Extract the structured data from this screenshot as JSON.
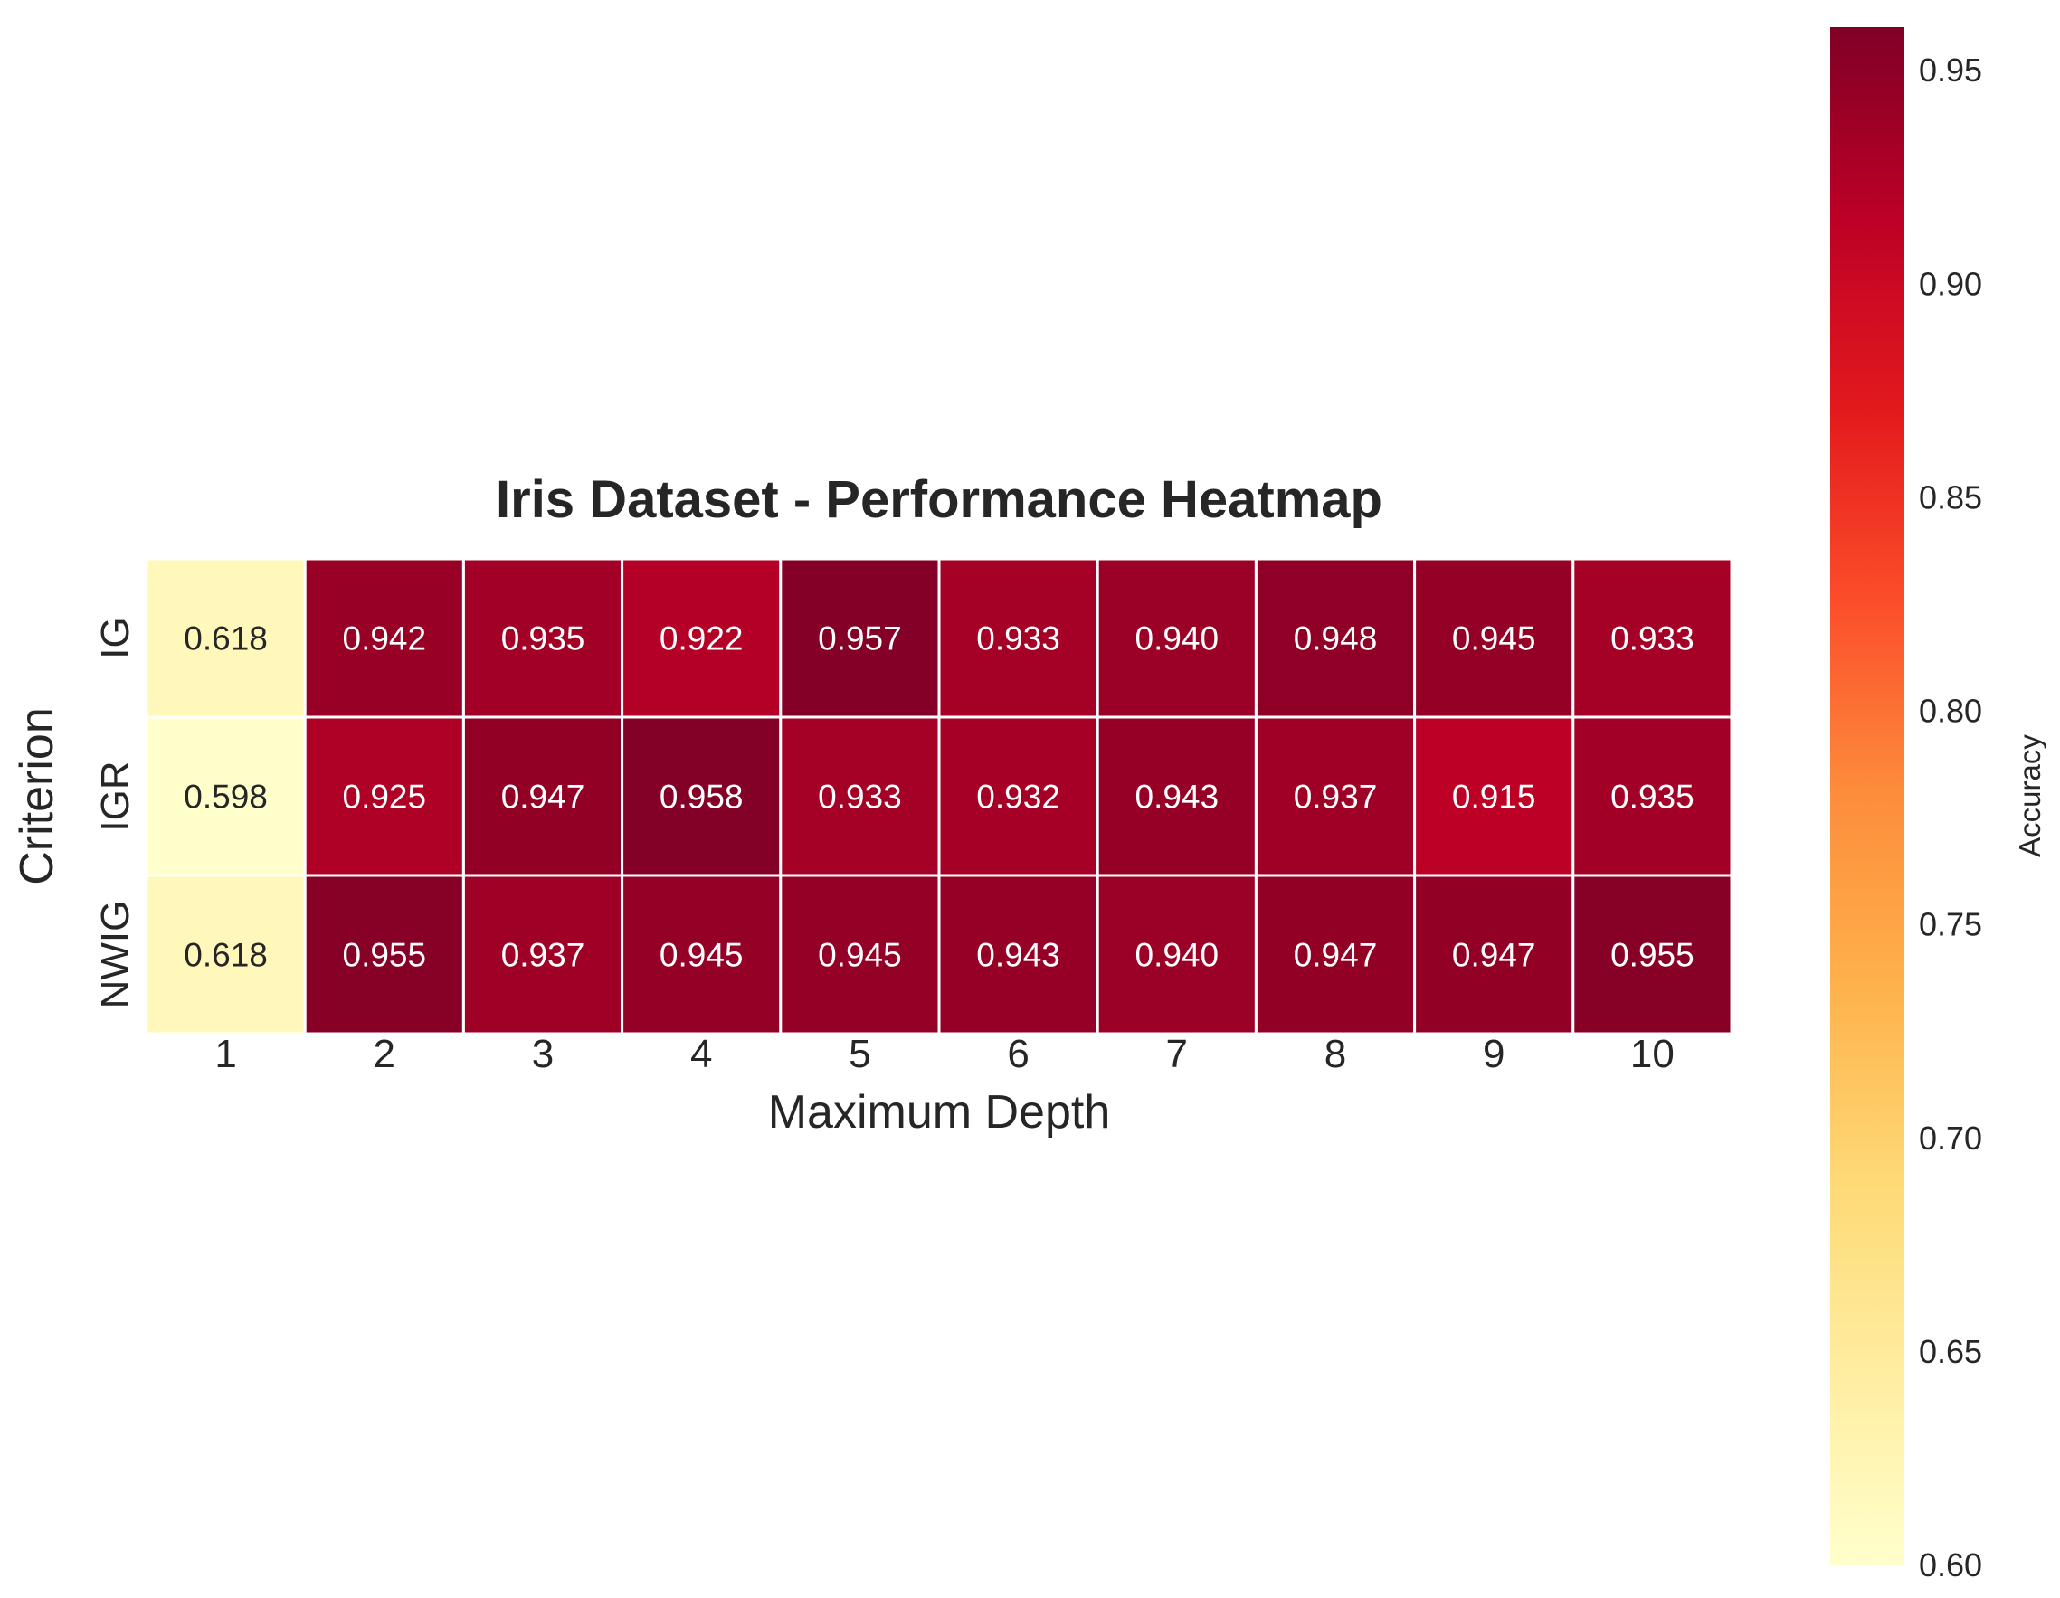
{
  "chart_data": {
    "type": "heatmap",
    "title": "Iris Dataset - Performance Heatmap",
    "xlabel": "Maximum Depth",
    "ylabel": "Criterion",
    "x_categories": [
      "1",
      "2",
      "3",
      "4",
      "5",
      "6",
      "7",
      "8",
      "9",
      "10"
    ],
    "y_categories": [
      "IG",
      "IGR",
      "NWIG"
    ],
    "values": [
      [
        0.618,
        0.942,
        0.935,
        0.922,
        0.957,
        0.933,
        0.94,
        0.948,
        0.945,
        0.933
      ],
      [
        0.598,
        0.925,
        0.947,
        0.958,
        0.933,
        0.932,
        0.943,
        0.937,
        0.915,
        0.935
      ],
      [
        0.618,
        0.955,
        0.937,
        0.945,
        0.945,
        0.943,
        0.94,
        0.947,
        0.947,
        0.955
      ]
    ],
    "cell_labels": [
      [
        "0.618",
        "0.942",
        "0.935",
        "0.922",
        "0.957",
        "0.933",
        "0.940",
        "0.948",
        "0.945",
        "0.933"
      ],
      [
        "0.598",
        "0.925",
        "0.947",
        "0.958",
        "0.933",
        "0.932",
        "0.943",
        "0.937",
        "0.915",
        "0.935"
      ],
      [
        "0.618",
        "0.955",
        "0.937",
        "0.945",
        "0.945",
        "0.943",
        "0.940",
        "0.947",
        "0.947",
        "0.955"
      ]
    ],
    "colorbar": {
      "label": "Accuracy",
      "range": [
        0.6,
        0.96
      ],
      "ticks": [
        0.6,
        0.65,
        0.7,
        0.75,
        0.8,
        0.85,
        0.9,
        0.95
      ],
      "tick_labels": [
        "0.60",
        "0.65",
        "0.70",
        "0.75",
        "0.80",
        "0.85",
        "0.90",
        "0.95"
      ],
      "colormap": "YlOrRd",
      "colormap_stops": [
        "#ffffcc",
        "#ffeda0",
        "#fed976",
        "#feb24c",
        "#fd8d3c",
        "#fc4e2a",
        "#e31a1c",
        "#bd0026",
        "#800026"
      ]
    },
    "grid": false,
    "text_colors": {
      "dark": "#262626",
      "light": "#ffffff"
    }
  }
}
